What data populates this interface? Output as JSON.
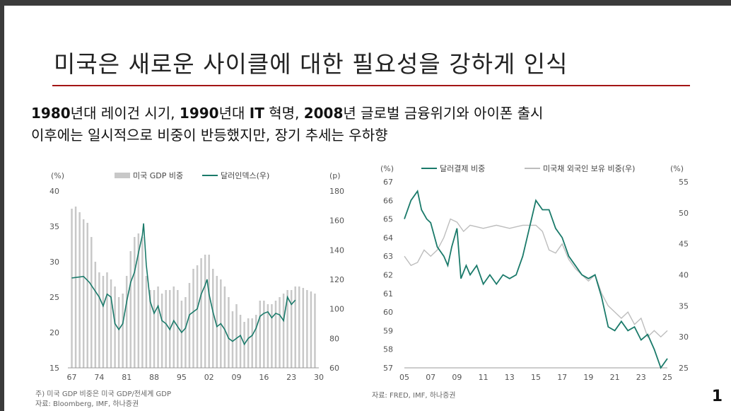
{
  "slide": {
    "title": "미국은 새로운 사이클에 대한 필요성을 강하게 인식",
    "subtitle_line1": "1980년대 레이건 시기, 1990년대 IT 혁명, 2008년 글로벌 금융위기와 아이폰 출시",
    "subtitle_line2": "이후에는 일시적으로 비중이 반등했지만, 장기 추세는 우하향",
    "page_number": "1"
  },
  "colors": {
    "accent_rule": "#a31515",
    "teal": "#1a7a6a",
    "bar_gray": "#c8c8c8",
    "light_gray_line": "#bdbdbd"
  },
  "chart_data": [
    {
      "type": "bar+line",
      "left_unit": "(%)",
      "right_unit": "(p)",
      "legend": [
        "미국 GDP 비중",
        "달러인덱스(우)"
      ],
      "x_ticks": [
        "67",
        "74",
        "81",
        "88",
        "95",
        "02",
        "09",
        "16",
        "23",
        "30"
      ],
      "y_left_ticks": [
        "40",
        "35",
        "30",
        "25",
        "20",
        "15"
      ],
      "y_right_ticks": [
        "180",
        "160",
        "140",
        "120",
        "100",
        "80",
        "60"
      ],
      "ylim_left": [
        15,
        40
      ],
      "ylim_right": [
        60,
        180
      ],
      "xlim": [
        1966,
        2030
      ],
      "bar_series": {
        "name": "미국 GDP 비중",
        "years": [
          1967,
          1968,
          1969,
          1970,
          1971,
          1972,
          1973,
          1974,
          1975,
          1976,
          1977,
          1978,
          1979,
          1980,
          1981,
          1982,
          1983,
          1984,
          1985,
          1986,
          1987,
          1988,
          1989,
          1990,
          1991,
          1992,
          1993,
          1994,
          1995,
          1996,
          1997,
          1998,
          1999,
          2000,
          2001,
          2002,
          2003,
          2004,
          2005,
          2006,
          2007,
          2008,
          2009,
          2010,
          2011,
          2012,
          2013,
          2014,
          2015,
          2016,
          2017,
          2018,
          2019,
          2020,
          2021,
          2022,
          2023,
          2024,
          2025,
          2026,
          2027,
          2028,
          2029
        ],
        "values": [
          37.5,
          37.8,
          37.0,
          36.0,
          35.5,
          33.5,
          30.0,
          28.5,
          28.0,
          28.5,
          27.5,
          26.5,
          25.0,
          25.5,
          28.0,
          31.5,
          33.5,
          34.0,
          33.5,
          28.0,
          26.0,
          26.0,
          26.5,
          25.5,
          26.0,
          26.0,
          26.5,
          26.0,
          24.5,
          25.0,
          27.0,
          29.0,
          29.5,
          30.5,
          31.0,
          31.0,
          29.0,
          28.0,
          27.5,
          26.5,
          25.0,
          23.0,
          24.0,
          22.5,
          21.5,
          22.0,
          22.0,
          22.5,
          24.5,
          24.5,
          24.0,
          24.0,
          24.5,
          25.0,
          25.5,
          26.0,
          26.0,
          26.5,
          26.5,
          26.3,
          26.0,
          25.8,
          25.5
        ]
      },
      "line_series": {
        "name": "달러인덱스(우)",
        "x": [
          1967,
          1970,
          1971.5,
          1973,
          1974,
          1975,
          1976,
          1977,
          1978,
          1979,
          1980,
          1981,
          1982,
          1983,
          1984,
          1985,
          1985.3,
          1986,
          1987,
          1988,
          1989,
          1990,
          1991,
          1992,
          1993,
          1994,
          1995,
          1996,
          1997,
          1998,
          1999,
          2000,
          2001,
          2001.5,
          2002,
          2003,
          2004,
          2005,
          2006,
          2007,
          2008,
          2009,
          2010,
          2011,
          2012,
          2013,
          2014,
          2015,
          2016,
          2017,
          2018,
          2019,
          2020,
          2021,
          2022,
          2023,
          2024
        ],
        "values": [
          121,
          122,
          118,
          112,
          108,
          102,
          110,
          108,
          90,
          86,
          90,
          105,
          118,
          125,
          138,
          150,
          158,
          130,
          105,
          97,
          102,
          92,
          90,
          86,
          92,
          88,
          84,
          87,
          96,
          98,
          100,
          110,
          116,
          120,
          110,
          98,
          88,
          90,
          86,
          80,
          78,
          80,
          82,
          76,
          80,
          82,
          87,
          95,
          97,
          98,
          94,
          97,
          96,
          92,
          108,
          103,
          106
        ]
      },
      "notes": [
        "주) 미국 GDP 비중은 미국 GDP/전세계 GDP",
        "자료: Bloomberg, IMF, 하나증권"
      ]
    },
    {
      "type": "line",
      "left_unit": "(%)",
      "right_unit": "(%)",
      "legend": [
        "달러결제 비중",
        "미국채 외국인 보유 비중(우)"
      ],
      "x_ticks": [
        "05",
        "07",
        "09",
        "11",
        "13",
        "15",
        "17",
        "19",
        "21",
        "23",
        "25"
      ],
      "y_left_ticks": [
        "67",
        "66",
        "65",
        "64",
        "63",
        "62",
        "61",
        "60",
        "59",
        "58",
        "57"
      ],
      "y_right_ticks": [
        "55",
        "50",
        "45",
        "40",
        "35",
        "30",
        "25"
      ],
      "ylim_left": [
        57,
        67
      ],
      "ylim_right": [
        25,
        55
      ],
      "xlim": [
        2005,
        2025
      ],
      "series": [
        {
          "name": "달러결제 비중",
          "x": [
            2005,
            2005.5,
            2006,
            2006.3,
            2006.7,
            2007,
            2007.5,
            2008,
            2008.3,
            2008.6,
            2009,
            2009.3,
            2009.7,
            2010,
            2010.5,
            2011,
            2011.5,
            2012,
            2012.5,
            2013,
            2013.5,
            2014,
            2014.5,
            2015,
            2015.5,
            2016,
            2016.5,
            2017,
            2017.5,
            2018,
            2018.5,
            2019,
            2019.5,
            2020,
            2020.5,
            2021,
            2021.5,
            2022,
            2022.5,
            2023,
            2023.5,
            2024,
            2024.5,
            2025
          ],
          "values": [
            65.0,
            66.0,
            66.5,
            65.5,
            65.0,
            64.8,
            63.5,
            63.0,
            62.5,
            63.5,
            64.5,
            61.8,
            62.5,
            62.0,
            62.5,
            61.5,
            62.0,
            61.5,
            62.0,
            61.8,
            62.0,
            63.0,
            64.5,
            66.0,
            65.5,
            65.5,
            64.5,
            64.0,
            63.0,
            62.5,
            62.0,
            61.8,
            62.0,
            60.8,
            59.2,
            59.0,
            59.5,
            59.0,
            59.2,
            58.5,
            58.8,
            58.0,
            57.0,
            57.5
          ]
        },
        {
          "name": "미국채 외국인 보유 비중(우)",
          "x": [
            2005,
            2005.5,
            2006,
            2006.5,
            2007,
            2007.5,
            2008,
            2008.5,
            2009,
            2009.5,
            2010,
            2011,
            2012,
            2013,
            2014,
            2015,
            2015.5,
            2016,
            2016.5,
            2017,
            2017.5,
            2018,
            2018.5,
            2019,
            2019.5,
            2020,
            2020.5,
            2021,
            2021.5,
            2022,
            2022.5,
            2023,
            2023.5,
            2024,
            2024.5,
            2025
          ],
          "values": [
            43,
            41.5,
            42,
            44,
            43,
            44,
            46,
            49,
            48.5,
            47,
            48,
            47.5,
            48,
            47.5,
            48,
            48,
            47,
            44,
            43.5,
            45,
            42.5,
            41,
            40,
            39,
            40,
            37,
            35,
            34,
            33,
            34,
            32,
            33,
            30,
            31,
            30,
            31
          ]
        }
      ],
      "notes": [
        "자료: FRED, IMF, 하나증권"
      ]
    }
  ]
}
